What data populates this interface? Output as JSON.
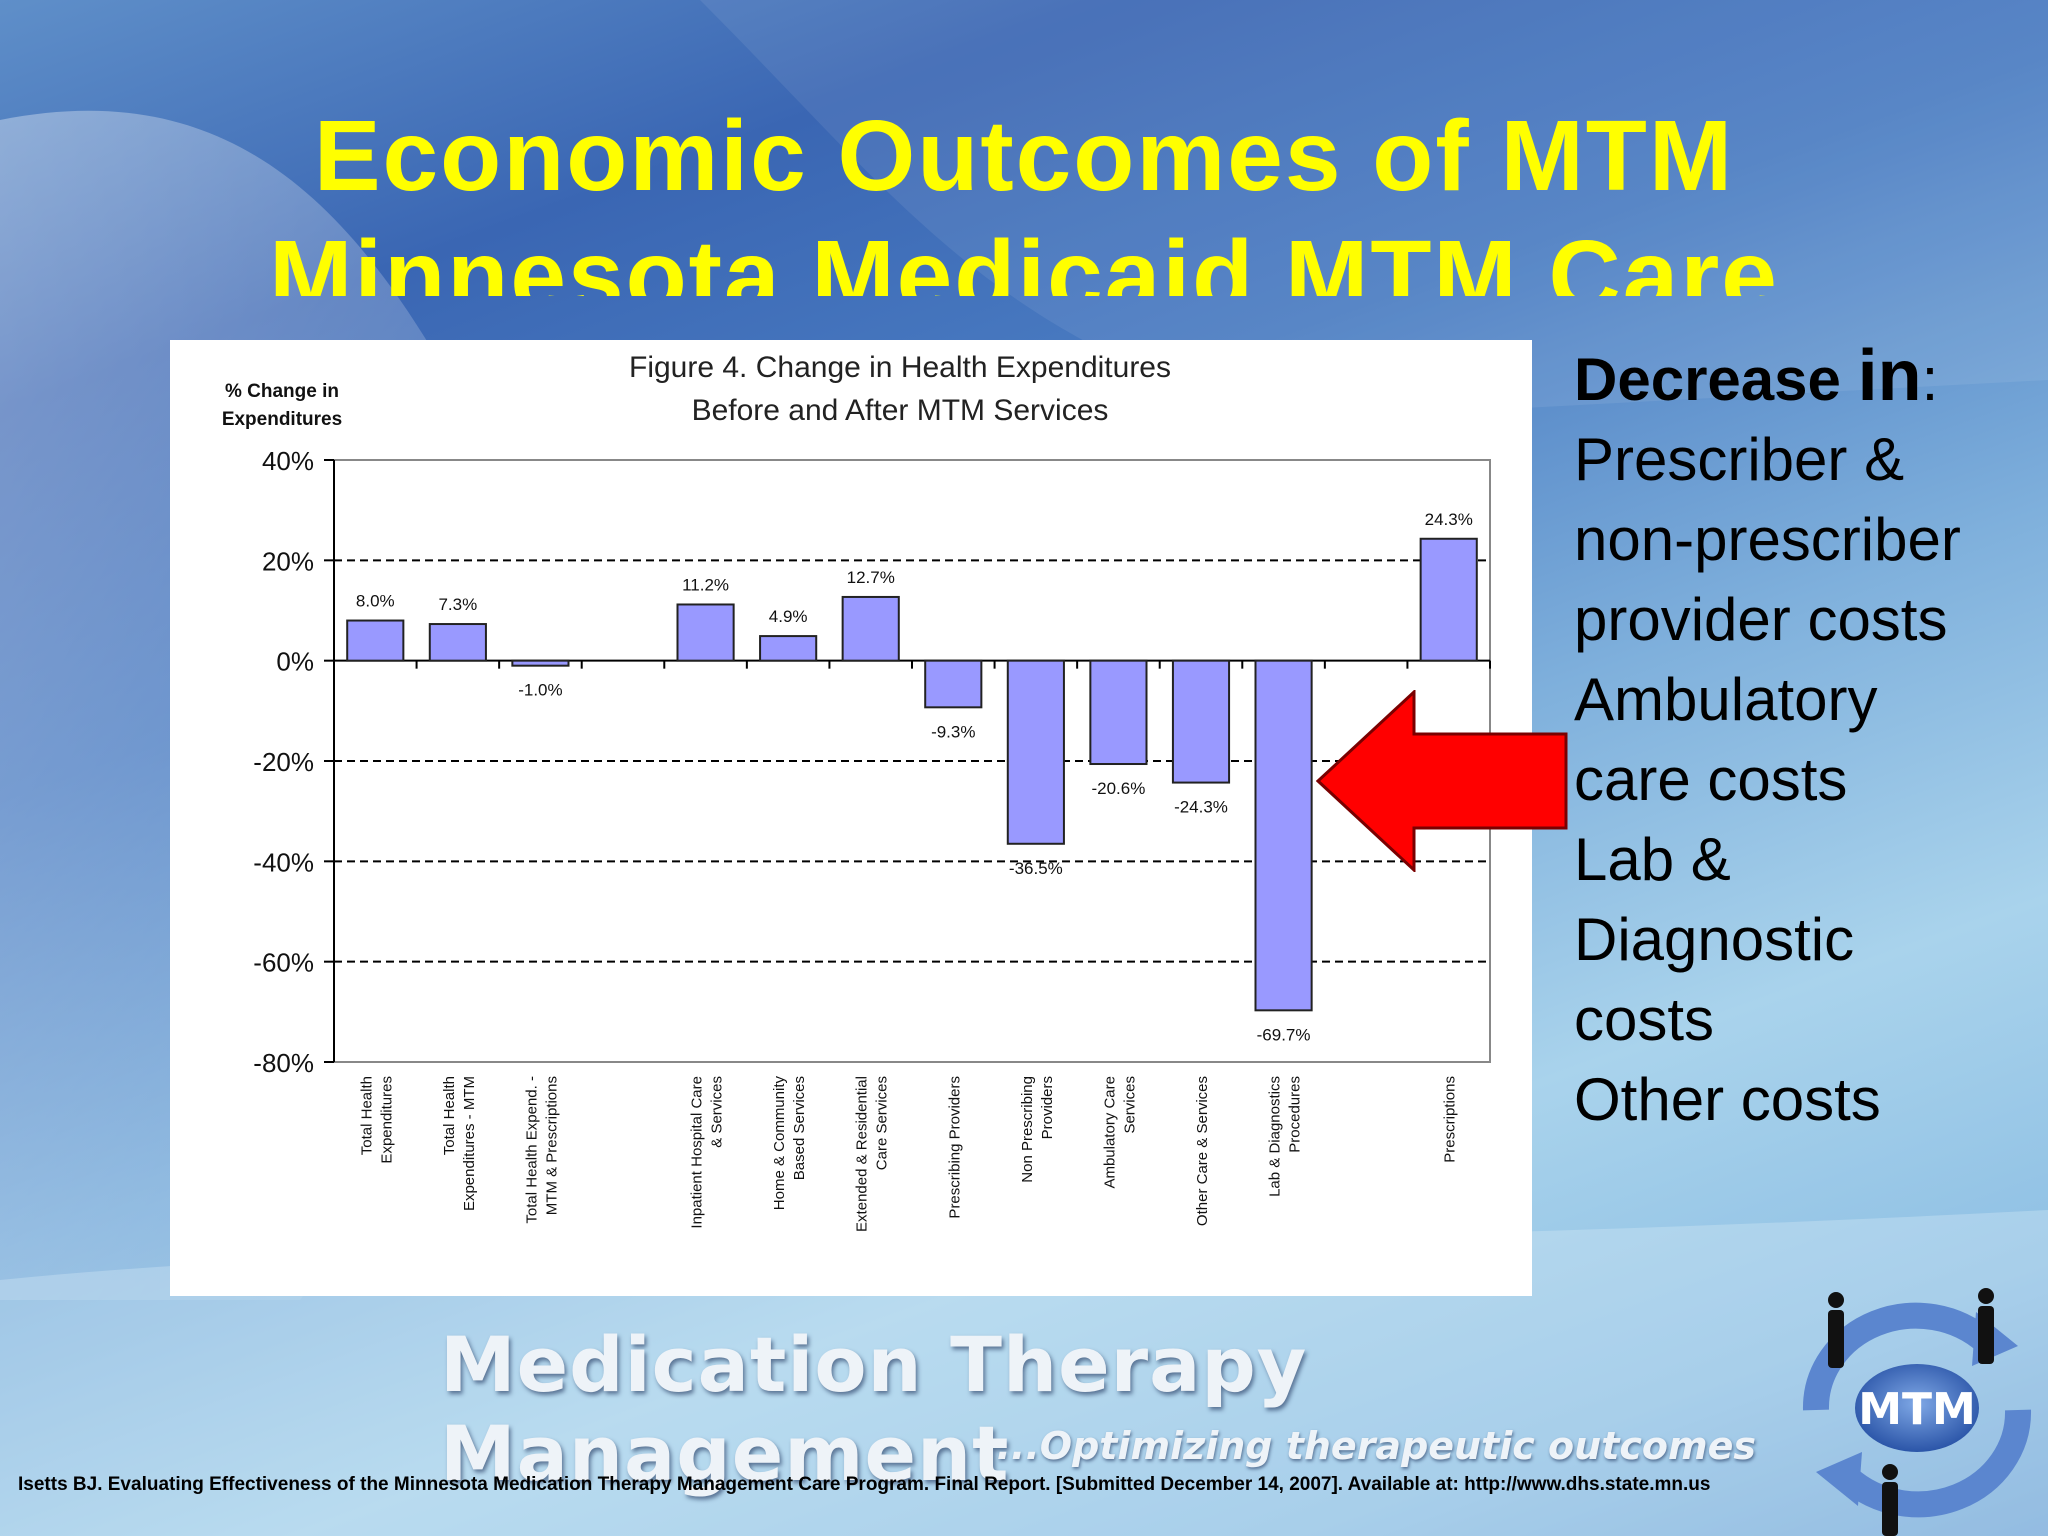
{
  "slide": {
    "title_line1": "Economic Outcomes of MTM",
    "title_line2": "Minnesota Medicaid MTM Care",
    "side_heading_bold": "Decrease ",
    "side_heading_in": "in",
    "side_heading_colon": ":",
    "side_items": [
      "Prescriber &",
      "non-prescriber",
      "provider costs",
      "Ambulatory",
      "care costs",
      "Lab &",
      "Diagnostic",
      "costs",
      "Other costs"
    ],
    "brand": "Medication Therapy Management",
    "tagline": "...Optimizing therapeutic outcomes",
    "logo_text": "MTM",
    "citation": "Isetts BJ.  Evaluating Effectiveness of the Minnesota Medication Therapy Management Care Program.  Final Report. [Submitted December 14, 2007]. Available at: http://www.dhs.state.mn.us",
    "colors": {
      "title": "#ffff00",
      "arrow": "#ff0000",
      "bar": "#9999ff"
    }
  },
  "chart_data": {
    "type": "bar",
    "title": "Figure 4.  Change in Health Expenditures",
    "subtitle": "Before and After MTM Services",
    "ylabel_line1": "% Change in",
    "ylabel_line2": "Expenditures",
    "ylim": [
      -80,
      40
    ],
    "yticks": [
      "40%",
      "20%",
      "0%",
      "-20%",
      "-40%",
      "-60%",
      "-80%"
    ],
    "ytick_values": [
      40,
      20,
      0,
      -20,
      -40,
      -60,
      -80
    ],
    "grid": "dashed horizontal at 20%, -20%, -40%, -60%",
    "categories": [
      [
        "Total Health",
        "Expenditures"
      ],
      [
        "Total Health",
        "Expenditures - MTM"
      ],
      [
        "Total Health Expend. -",
        "MTM & Prescriptions"
      ],
      [],
      [
        "Inpatient Hospital Care",
        "& Services"
      ],
      [
        "Home & Community",
        "Based Services"
      ],
      [
        "Extended & Residential",
        "Care Services"
      ],
      [
        "Prescribing Providers"
      ],
      [
        "Non Prescribing",
        "Providers"
      ],
      [
        "Ambulatory Care",
        "Services"
      ],
      [
        "Other Care & Services"
      ],
      [
        "Lab & Diagnostics",
        "Procedures"
      ],
      [],
      [
        "Prescriptions"
      ]
    ],
    "values": [
      8.0,
      7.3,
      -1.0,
      null,
      11.2,
      4.9,
      12.7,
      -9.3,
      -36.5,
      -20.6,
      -24.3,
      -69.7,
      null,
      24.3
    ],
    "labels": [
      "8.0%",
      "7.3%",
      "-1.0%",
      "",
      "11.2%",
      "4.9%",
      "12.7%",
      "-9.3%",
      "-36.5%",
      "-20.6%",
      "-24.3%",
      "-69.7%",
      "",
      "24.3%"
    ]
  }
}
